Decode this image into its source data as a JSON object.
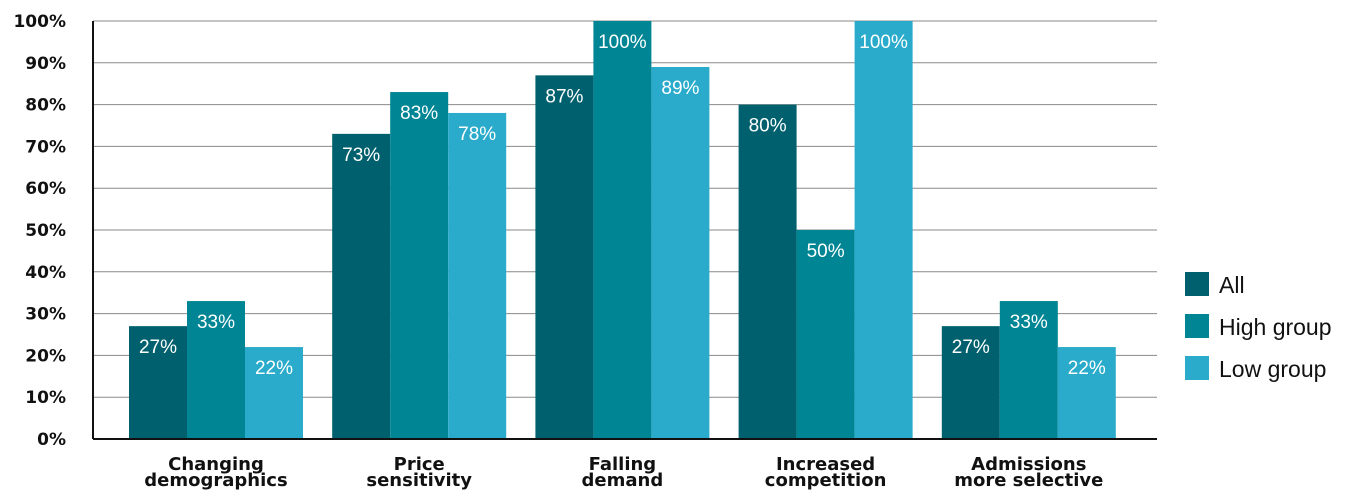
{
  "chart_data": {
    "type": "bar",
    "categories": [
      [
        "Changing",
        "demographics"
      ],
      [
        "Price",
        "sensitivity"
      ],
      [
        "Falling",
        "demand"
      ],
      [
        "Increased",
        "competition"
      ],
      [
        "Admissions",
        "more selective"
      ]
    ],
    "series": [
      {
        "name": "All",
        "color": "#00606e",
        "values": [
          27,
          73,
          87,
          80,
          27
        ],
        "labels": [
          "27%",
          "73%",
          "87%",
          "80%",
          "27%"
        ]
      },
      {
        "name": "High group",
        "color": "#008594",
        "values": [
          33,
          83,
          100,
          50,
          33
        ],
        "labels": [
          "33%",
          "83%",
          "100%",
          "50%",
          "33%"
        ]
      },
      {
        "name": "Low group",
        "color": "#2aabcb",
        "values": [
          22,
          78,
          89,
          100,
          22
        ],
        "labels": [
          "22%",
          "78%",
          "89%",
          "100%",
          "22%"
        ]
      }
    ],
    "yticks": [
      "0%",
      "10%",
      "20%",
      "30%",
      "40%",
      "50%",
      "60%",
      "70%",
      "80%",
      "90%",
      "100%"
    ],
    "ylim": [
      0,
      100
    ],
    "grid": true,
    "legend": "right"
  }
}
